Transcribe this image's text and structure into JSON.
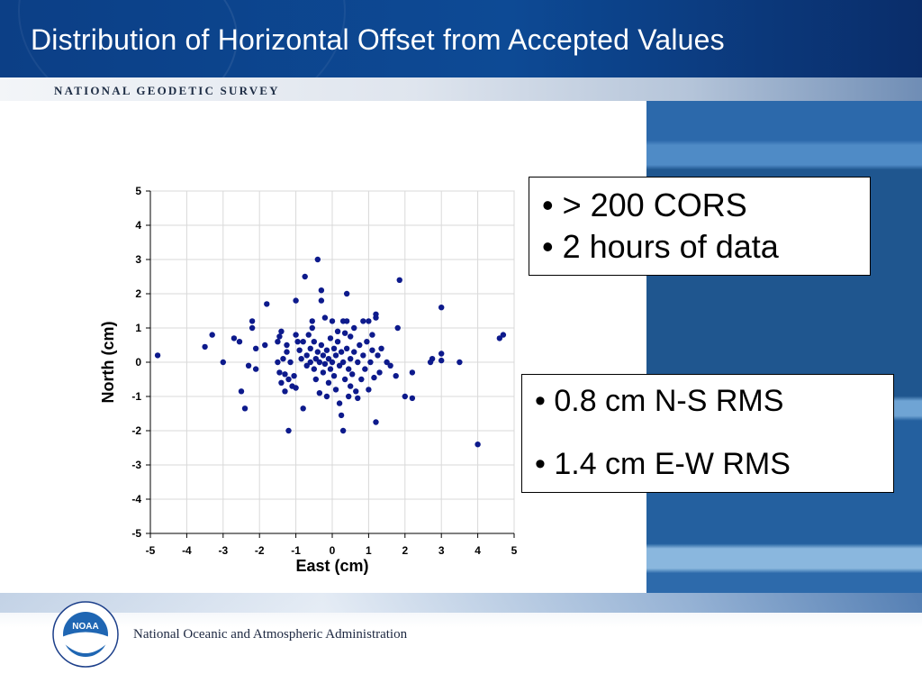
{
  "slide": {
    "title": "Distribution of Horizontal Offset from Accepted Values",
    "agency": "NATIONAL GEODETIC SURVEY",
    "footer": "National Oceanic and Atmospheric Administration",
    "logo_text": "NOAA"
  },
  "callouts": {
    "box1": [
      "• > 200 CORS",
      "• 2  hours of data"
    ],
    "box2": [
      "•  0.8 cm N-S RMS",
      "•  1.4 cm E-W RMS"
    ]
  },
  "colors": {
    "points": "#0d1a8c",
    "header": "#0c3f86"
  },
  "chart_data": {
    "type": "scatter",
    "xlabel": "East (cm)",
    "ylabel": "North (cm)",
    "xlim": [
      -5,
      5
    ],
    "ylim": [
      -5,
      5
    ],
    "xticks": [
      -5,
      -4,
      -3,
      -2,
      -1,
      0,
      1,
      2,
      3,
      4,
      5
    ],
    "yticks": [
      -5,
      -4,
      -3,
      -2,
      -1,
      0,
      1,
      2,
      3,
      4,
      5
    ],
    "grid": true,
    "points": [
      [
        -4.8,
        0.2
      ],
      [
        -3.5,
        0.45
      ],
      [
        -3.3,
        0.8
      ],
      [
        -3.0,
        0.0
      ],
      [
        -2.7,
        0.7
      ],
      [
        -2.55,
        0.6
      ],
      [
        -2.5,
        -0.85
      ],
      [
        -2.4,
        -1.35
      ],
      [
        -2.3,
        -0.1
      ],
      [
        -2.2,
        1.0
      ],
      [
        -2.2,
        1.2
      ],
      [
        -2.1,
        -0.2
      ],
      [
        -2.1,
        0.4
      ],
      [
        -1.85,
        0.5
      ],
      [
        -1.8,
        1.7
      ],
      [
        -1.5,
        0.0
      ],
      [
        -1.5,
        0.6
      ],
      [
        -1.45,
        0.75
      ],
      [
        -1.45,
        -0.3
      ],
      [
        -1.4,
        0.9
      ],
      [
        -1.4,
        -0.6
      ],
      [
        -1.35,
        0.1
      ],
      [
        -1.3,
        -0.35
      ],
      [
        -1.3,
        -0.85
      ],
      [
        -1.25,
        0.5
      ],
      [
        -1.25,
        0.3
      ],
      [
        -1.2,
        -0.5
      ],
      [
        -1.2,
        -2.0
      ],
      [
        -1.15,
        0.0
      ],
      [
        -1.1,
        -0.7
      ],
      [
        -1.05,
        -0.4
      ],
      [
        -1.0,
        0.8
      ],
      [
        -1.0,
        1.8
      ],
      [
        -1.0,
        -0.75
      ],
      [
        -0.95,
        0.6
      ],
      [
        -0.9,
        0.35
      ],
      [
        -0.85,
        0.1
      ],
      [
        -0.8,
        0.6
      ],
      [
        -0.8,
        -1.35
      ],
      [
        -0.75,
        2.5
      ],
      [
        -0.7,
        0.2
      ],
      [
        -0.7,
        -0.1
      ],
      [
        -0.65,
        0.8
      ],
      [
        -0.6,
        0.0
      ],
      [
        -0.6,
        0.4
      ],
      [
        -0.55,
        1.0
      ],
      [
        -0.55,
        1.2
      ],
      [
        -0.5,
        -0.2
      ],
      [
        -0.5,
        0.6
      ],
      [
        -0.45,
        0.1
      ],
      [
        -0.45,
        -0.5
      ],
      [
        -0.4,
        3.0
      ],
      [
        -0.4,
        0.3
      ],
      [
        -0.35,
        0.0
      ],
      [
        -0.35,
        -0.9
      ],
      [
        -0.3,
        1.8
      ],
      [
        -0.3,
        2.1
      ],
      [
        -0.3,
        0.5
      ],
      [
        -0.25,
        -0.3
      ],
      [
        -0.25,
        0.2
      ],
      [
        -0.2,
        1.3
      ],
      [
        -0.2,
        -0.05
      ],
      [
        -0.15,
        0.35
      ],
      [
        -0.15,
        -1.0
      ],
      [
        -0.1,
        0.1
      ],
      [
        -0.1,
        -0.6
      ],
      [
        -0.05,
        -0.2
      ],
      [
        -0.05,
        0.7
      ],
      [
        0.0,
        0.0
      ],
      [
        0.0,
        1.2
      ],
      [
        0.05,
        0.4
      ],
      [
        0.05,
        -0.4
      ],
      [
        0.1,
        0.2
      ],
      [
        0.1,
        -0.8
      ],
      [
        0.15,
        0.9
      ],
      [
        0.15,
        0.6
      ],
      [
        0.2,
        -0.1
      ],
      [
        0.2,
        -1.2
      ],
      [
        0.25,
        0.3
      ],
      [
        0.25,
        -1.55
      ],
      [
        0.3,
        1.2
      ],
      [
        0.3,
        0.0
      ],
      [
        0.3,
        -2.0
      ],
      [
        0.35,
        0.85
      ],
      [
        0.35,
        -0.5
      ],
      [
        0.4,
        2.0
      ],
      [
        0.4,
        1.2
      ],
      [
        0.4,
        0.4
      ],
      [
        0.45,
        -0.2
      ],
      [
        0.45,
        -1.0
      ],
      [
        0.5,
        0.1
      ],
      [
        0.5,
        0.75
      ],
      [
        0.5,
        -0.7
      ],
      [
        0.55,
        -0.35
      ],
      [
        0.6,
        1.0
      ],
      [
        0.6,
        0.3
      ],
      [
        0.65,
        -0.85
      ],
      [
        0.7,
        0.0
      ],
      [
        0.7,
        -1.05
      ],
      [
        0.75,
        0.5
      ],
      [
        0.8,
        -0.5
      ],
      [
        0.85,
        1.2
      ],
      [
        0.85,
        0.2
      ],
      [
        0.9,
        -0.2
      ],
      [
        0.95,
        0.6
      ],
      [
        1.0,
        1.2
      ],
      [
        1.0,
        -0.8
      ],
      [
        1.05,
        0.0
      ],
      [
        1.1,
        0.8
      ],
      [
        1.1,
        0.35
      ],
      [
        1.15,
        -0.45
      ],
      [
        1.2,
        1.3
      ],
      [
        1.2,
        1.4
      ],
      [
        1.2,
        -1.75
      ],
      [
        1.25,
        0.2
      ],
      [
        1.3,
        -0.3
      ],
      [
        1.35,
        0.4
      ],
      [
        1.5,
        0.0
      ],
      [
        1.6,
        -0.1
      ],
      [
        1.75,
        -0.4
      ],
      [
        1.8,
        1.0
      ],
      [
        1.85,
        2.4
      ],
      [
        2.0,
        -1.0
      ],
      [
        2.2,
        -0.3
      ],
      [
        2.2,
        -1.05
      ],
      [
        2.7,
        0.0
      ],
      [
        2.75,
        0.1
      ],
      [
        3.0,
        1.6
      ],
      [
        3.0,
        0.25
      ],
      [
        3.0,
        0.05
      ],
      [
        3.5,
        0.0
      ],
      [
        4.0,
        -2.4
      ],
      [
        4.6,
        0.7
      ],
      [
        4.7,
        0.8
      ]
    ]
  }
}
